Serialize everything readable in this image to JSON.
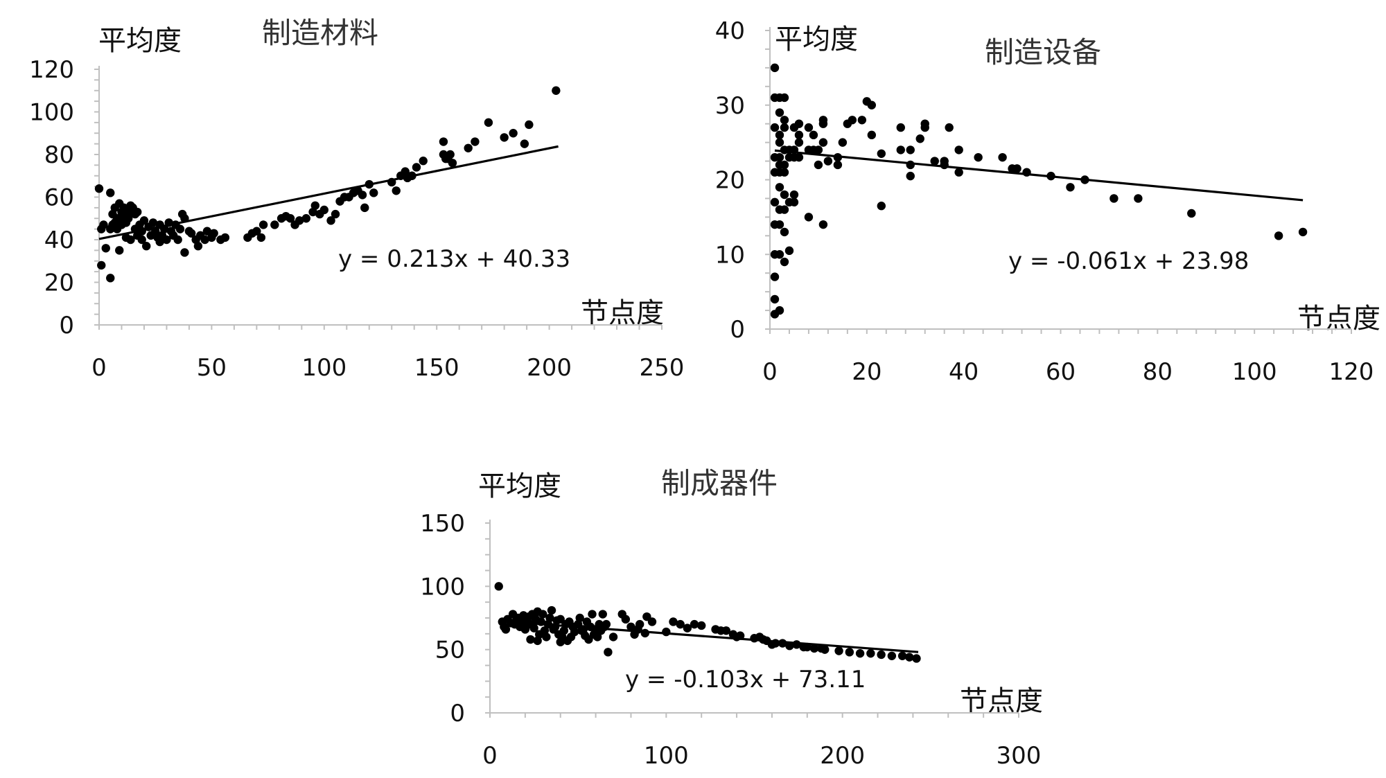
{
  "chart_data": [
    {
      "type": "scatter",
      "title": "制造材料",
      "ylabel": "平均度",
      "xlabel": "节点度",
      "xlim": [
        0,
        250
      ],
      "ylim": [
        0,
        120
      ],
      "x_ticks": [
        "0",
        "50",
        "100",
        "150",
        "200",
        "250"
      ],
      "y_ticks": [
        "0",
        "20",
        "40",
        "60",
        "80",
        "100",
        "120"
      ],
      "trendline": {
        "slope": 0.213,
        "intercept": 40.33,
        "x_range": [
          0,
          204
        ],
        "label": "y = 0.213x + 40.33"
      },
      "points": [
        [
          0,
          64
        ],
        [
          1,
          28
        ],
        [
          1,
          45
        ],
        [
          2,
          47
        ],
        [
          3,
          36
        ],
        [
          5,
          22
        ],
        [
          5,
          62
        ],
        [
          5,
          45
        ],
        [
          6,
          52
        ],
        [
          6,
          47
        ],
        [
          7,
          48
        ],
        [
          7,
          55
        ],
        [
          8,
          45
        ],
        [
          8,
          50
        ],
        [
          9,
          57
        ],
        [
          9,
          50
        ],
        [
          9,
          35
        ],
        [
          10,
          53
        ],
        [
          10,
          47
        ],
        [
          11,
          55
        ],
        [
          11,
          50
        ],
        [
          12,
          48
        ],
        [
          12,
          41
        ],
        [
          13,
          53
        ],
        [
          13,
          50
        ],
        [
          14,
          56
        ],
        [
          14,
          40
        ],
        [
          15,
          55
        ],
        [
          16,
          45
        ],
        [
          16,
          52
        ],
        [
          17,
          42
        ],
        [
          17,
          53
        ],
        [
          18,
          47
        ],
        [
          19,
          44
        ],
        [
          19,
          40
        ],
        [
          20,
          49
        ],
        [
          21,
          37
        ],
        [
          22,
          46
        ],
        [
          23,
          42
        ],
        [
          24,
          48
        ],
        [
          25,
          44
        ],
        [
          26,
          41
        ],
        [
          27,
          47
        ],
        [
          27,
          39
        ],
        [
          28,
          42
        ],
        [
          29,
          45
        ],
        [
          30,
          40
        ],
        [
          31,
          48
        ],
        [
          32,
          44
        ],
        [
          33,
          42
        ],
        [
          34,
          47
        ],
        [
          35,
          40
        ],
        [
          36,
          45
        ],
        [
          37,
          52
        ],
        [
          38,
          50
        ],
        [
          38,
          34
        ],
        [
          40,
          44
        ],
        [
          41,
          43
        ],
        [
          43,
          40
        ],
        [
          44,
          37
        ],
        [
          45,
          42
        ],
        [
          47,
          40
        ],
        [
          48,
          44
        ],
        [
          50,
          41
        ],
        [
          51,
          43
        ],
        [
          54,
          40
        ],
        [
          56,
          41
        ],
        [
          66,
          41
        ],
        [
          68,
          43
        ],
        [
          70,
          44
        ],
        [
          72,
          41
        ],
        [
          73,
          47
        ],
        [
          78,
          47
        ],
        [
          81,
          50
        ],
        [
          83,
          51
        ],
        [
          85,
          50
        ],
        [
          87,
          47
        ],
        [
          89,
          49
        ],
        [
          92,
          50
        ],
        [
          95,
          53
        ],
        [
          96,
          56
        ],
        [
          98,
          52
        ],
        [
          100,
          54
        ],
        [
          103,
          49
        ],
        [
          105,
          52
        ],
        [
          107,
          58
        ],
        [
          109,
          60
        ],
        [
          111,
          60
        ],
        [
          113,
          62
        ],
        [
          115,
          63
        ],
        [
          117,
          61
        ],
        [
          118,
          55
        ],
        [
          120,
          66
        ],
        [
          122,
          62
        ],
        [
          130,
          67
        ],
        [
          132,
          63
        ],
        [
          134,
          70
        ],
        [
          136,
          72
        ],
        [
          137,
          69
        ],
        [
          139,
          70
        ],
        [
          141,
          74
        ],
        [
          144,
          77
        ],
        [
          153,
          86
        ],
        [
          153,
          80
        ],
        [
          154,
          78
        ],
        [
          155,
          78
        ],
        [
          156,
          80
        ],
        [
          157,
          76
        ],
        [
          164,
          83
        ],
        [
          167,
          86
        ],
        [
          173,
          95
        ],
        [
          180,
          88
        ],
        [
          184,
          90
        ],
        [
          189,
          85
        ],
        [
          191,
          94
        ],
        [
          203,
          110
        ]
      ]
    },
    {
      "type": "scatter",
      "title": "制造设备",
      "ylabel": "平均度",
      "xlabel": "节点度",
      "xlim": [
        0,
        120
      ],
      "ylim": [
        0,
        40
      ],
      "x_ticks": [
        "0",
        "20",
        "40",
        "60",
        "80",
        "100",
        "120"
      ],
      "y_ticks": [
        "0",
        "10",
        "20",
        "30",
        "40"
      ],
      "trendline": {
        "slope": -0.061,
        "intercept": 23.98,
        "x_range": [
          1,
          110
        ],
        "label": "y = -0.061x + 23.98"
      },
      "points": [
        [
          1,
          35
        ],
        [
          1,
          31
        ],
        [
          1,
          27
        ],
        [
          1,
          23
        ],
        [
          1,
          21
        ],
        [
          1,
          17
        ],
        [
          1,
          14
        ],
        [
          1,
          10
        ],
        [
          1,
          7
        ],
        [
          1,
          4
        ],
        [
          1,
          2
        ],
        [
          2,
          31
        ],
        [
          2,
          29
        ],
        [
          2,
          26
        ],
        [
          2,
          25
        ],
        [
          2,
          23
        ],
        [
          2,
          22
        ],
        [
          2,
          21
        ],
        [
          2,
          19
        ],
        [
          2,
          16
        ],
        [
          2,
          14
        ],
        [
          2,
          10
        ],
        [
          2,
          2.5
        ],
        [
          3,
          31
        ],
        [
          3,
          28
        ],
        [
          3,
          27
        ],
        [
          3,
          24
        ],
        [
          3,
          22
        ],
        [
          3,
          21
        ],
        [
          3,
          18
        ],
        [
          3,
          16
        ],
        [
          3,
          13
        ],
        [
          3,
          9
        ],
        [
          4,
          24
        ],
        [
          4,
          23
        ],
        [
          4,
          17
        ],
        [
          4,
          10.5
        ],
        [
          5,
          27
        ],
        [
          5,
          24
        ],
        [
          5,
          23
        ],
        [
          5,
          18
        ],
        [
          5,
          17
        ],
        [
          6,
          27.5
        ],
        [
          6,
          26
        ],
        [
          6,
          23
        ],
        [
          6,
          25
        ],
        [
          8,
          27
        ],
        [
          8,
          24
        ],
        [
          8,
          15
        ],
        [
          9,
          26
        ],
        [
          9,
          24
        ],
        [
          10,
          24
        ],
        [
          10,
          22
        ],
        [
          11,
          28
        ],
        [
          11,
          27.5
        ],
        [
          11,
          25
        ],
        [
          11,
          14
        ],
        [
          12,
          22.5
        ],
        [
          14,
          22
        ],
        [
          14,
          23
        ],
        [
          15,
          25
        ],
        [
          16,
          27.5
        ],
        [
          17,
          28
        ],
        [
          19,
          28
        ],
        [
          20,
          30.5
        ],
        [
          21,
          30
        ],
        [
          21,
          26
        ],
        [
          23,
          16.5
        ],
        [
          23,
          23.5
        ],
        [
          27,
          27
        ],
        [
          27,
          24
        ],
        [
          29,
          24
        ],
        [
          29,
          22
        ],
        [
          29,
          20.5
        ],
        [
          31,
          25.5
        ],
        [
          32,
          27.5
        ],
        [
          32,
          27
        ],
        [
          34,
          22.5
        ],
        [
          36,
          22.5
        ],
        [
          36,
          22
        ],
        [
          37,
          27
        ],
        [
          39,
          24
        ],
        [
          39,
          21
        ],
        [
          43,
          23
        ],
        [
          48,
          23
        ],
        [
          50,
          21.5
        ],
        [
          51,
          21.5
        ],
        [
          53,
          21
        ],
        [
          58,
          20.5
        ],
        [
          62,
          19
        ],
        [
          65,
          20
        ],
        [
          71,
          17.5
        ],
        [
          76,
          17.5
        ],
        [
          87,
          15.5
        ],
        [
          105,
          12.5
        ],
        [
          110,
          13
        ]
      ]
    },
    {
      "type": "scatter",
      "title": "制成器件",
      "ylabel": "平均度",
      "xlabel": "节点度",
      "xlim": [
        0,
        300
      ],
      "ylim": [
        0,
        150
      ],
      "x_ticks": [
        "0",
        "100",
        "200",
        "300"
      ],
      "y_ticks": [
        "0",
        "50",
        "100",
        "150"
      ],
      "trendline": {
        "slope": -0.103,
        "intercept": 73.11,
        "x_range": [
          5,
          243
        ],
        "label": "y = -0.103x + 73.11"
      },
      "points": [
        [
          5,
          100
        ],
        [
          7,
          72
        ],
        [
          8,
          68
        ],
        [
          9,
          66
        ],
        [
          10,
          74
        ],
        [
          12,
          71
        ],
        [
          13,
          78
        ],
        [
          14,
          70
        ],
        [
          15,
          73
        ],
        [
          16,
          75
        ],
        [
          17,
          68
        ],
        [
          18,
          70
        ],
        [
          19,
          77
        ],
        [
          20,
          72
        ],
        [
          20,
          66
        ],
        [
          21,
          74
        ],
        [
          22,
          76
        ],
        [
          23,
          70
        ],
        [
          23,
          58
        ],
        [
          24,
          78
        ],
        [
          25,
          67
        ],
        [
          26,
          74
        ],
        [
          27,
          57
        ],
        [
          27,
          80
        ],
        [
          28,
          62
        ],
        [
          29,
          72
        ],
        [
          30,
          78
        ],
        [
          31,
          65
        ],
        [
          32,
          60
        ],
        [
          33,
          70
        ],
        [
          34,
          75
        ],
        [
          35,
          81
        ],
        [
          36,
          66
        ],
        [
          37,
          68
        ],
        [
          38,
          73
        ],
        [
          39,
          62
        ],
        [
          40,
          56
        ],
        [
          40,
          74
        ],
        [
          41,
          60
        ],
        [
          42,
          65
        ],
        [
          43,
          70
        ],
        [
          44,
          57
        ],
        [
          45,
          72
        ],
        [
          46,
          60
        ],
        [
          47,
          68
        ],
        [
          48,
          64
        ],
        [
          50,
          70
        ],
        [
          51,
          75
        ],
        [
          52,
          65
        ],
        [
          53,
          66
        ],
        [
          54,
          61
        ],
        [
          55,
          72
        ],
        [
          56,
          58
        ],
        [
          57,
          68
        ],
        [
          58,
          78
        ],
        [
          59,
          62
        ],
        [
          60,
          66
        ],
        [
          61,
          60
        ],
        [
          62,
          70
        ],
        [
          63,
          65
        ],
        [
          64,
          78
        ],
        [
          65,
          68
        ],
        [
          66,
          70
        ],
        [
          67,
          48
        ],
        [
          70,
          60
        ],
        [
          75,
          78
        ],
        [
          77,
          74
        ],
        [
          80,
          68
        ],
        [
          82,
          62
        ],
        [
          84,
          66
        ],
        [
          85,
          70
        ],
        [
          88,
          63
        ],
        [
          89,
          76
        ],
        [
          92,
          72
        ],
        [
          100,
          64
        ],
        [
          104,
          72
        ],
        [
          108,
          70
        ],
        [
          112,
          67
        ],
        [
          116,
          70
        ],
        [
          120,
          69
        ],
        [
          128,
          66
        ],
        [
          131,
          65
        ],
        [
          134,
          65
        ],
        [
          138,
          62
        ],
        [
          140,
          60
        ],
        [
          142,
          61
        ],
        [
          150,
          59
        ],
        [
          153,
          60
        ],
        [
          155,
          58
        ],
        [
          157,
          57
        ],
        [
          160,
          54
        ],
        [
          162,
          55
        ],
        [
          166,
          55
        ],
        [
          170,
          53
        ],
        [
          174,
          54
        ],
        [
          178,
          52
        ],
        [
          180,
          52
        ],
        [
          184,
          51
        ],
        [
          188,
          51
        ],
        [
          190,
          50
        ],
        [
          198,
          49
        ],
        [
          204,
          48
        ],
        [
          210,
          47
        ],
        [
          216,
          47
        ],
        [
          222,
          46
        ],
        [
          228,
          45
        ],
        [
          234,
          45
        ],
        [
          238,
          44
        ],
        [
          242,
          43
        ]
      ]
    }
  ]
}
